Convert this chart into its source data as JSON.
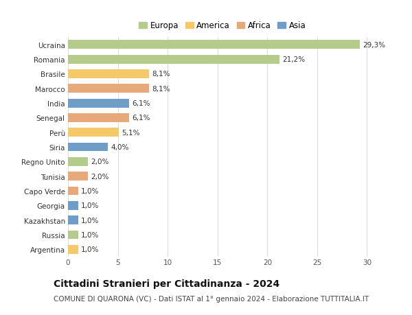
{
  "countries": [
    "Ucraina",
    "Romania",
    "Brasile",
    "Marocco",
    "India",
    "Senegal",
    "Perù",
    "Siria",
    "Regno Unito",
    "Tunisia",
    "Capo Verde",
    "Georgia",
    "Kazakhstan",
    "Russia",
    "Argentina"
  ],
  "values": [
    29.3,
    21.2,
    8.1,
    8.1,
    6.1,
    6.1,
    5.1,
    4.0,
    2.0,
    2.0,
    1.0,
    1.0,
    1.0,
    1.0,
    1.0
  ],
  "labels": [
    "29,3%",
    "21,2%",
    "8,1%",
    "8,1%",
    "6,1%",
    "6,1%",
    "5,1%",
    "4,0%",
    "2,0%",
    "2,0%",
    "1,0%",
    "1,0%",
    "1,0%",
    "1,0%",
    "1,0%"
  ],
  "continents": [
    "Europa",
    "Europa",
    "America",
    "Africa",
    "Asia",
    "Africa",
    "America",
    "Asia",
    "Europa",
    "Africa",
    "Africa",
    "Asia",
    "Asia",
    "Europa",
    "America"
  ],
  "continent_colors": {
    "Europa": "#b5cb8b",
    "America": "#f5c96a",
    "Africa": "#e8a97a",
    "Asia": "#6e9ec8"
  },
  "legend_order": [
    "Europa",
    "America",
    "Africa",
    "Asia"
  ],
  "xlim": [
    0,
    31
  ],
  "xticks": [
    0,
    5,
    10,
    15,
    20,
    25,
    30
  ],
  "title": "Cittadini Stranieri per Cittadinanza - 2024",
  "subtitle": "COMUNE DI QUARONA (VC) - Dati ISTAT al 1° gennaio 2024 - Elaborazione TUTTITALIA.IT",
  "background_color": "#ffffff",
  "grid_color": "#dddddd",
  "bar_height": 0.6,
  "title_fontsize": 10,
  "subtitle_fontsize": 7.5,
  "label_fontsize": 7.5,
  "tick_fontsize": 7.5,
  "legend_fontsize": 8.5
}
